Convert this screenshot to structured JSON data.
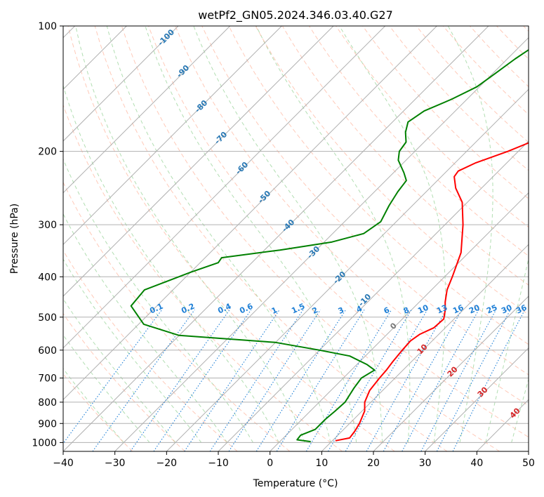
{
  "chart_data": {
    "type": "line",
    "title": "wetPf2_GN05.2024.346.03.40.G27",
    "xlabel": "Temperature (°C)",
    "ylabel": "Pressure (hPa)",
    "xlim": [
      -40,
      50
    ],
    "ylim": [
      1050,
      100
    ],
    "y_scale": "log",
    "x_ticks": [
      "−40",
      "−30",
      "−20",
      "−10",
      "0",
      "10",
      "20",
      "30",
      "40",
      "50"
    ],
    "y_ticks": [
      "100",
      "200",
      "300",
      "400",
      "500",
      "600",
      "700",
      "800",
      "900",
      "1000"
    ],
    "grid": true,
    "skew": "skew-T log-p",
    "series": [
      {
        "kind": "temperature",
        "color": "#ff0000",
        "points": [
          [
            10.6,
            990
          ],
          [
            12.8,
            975
          ],
          [
            12.5,
            940
          ],
          [
            11.9,
            900
          ],
          [
            10.5,
            840
          ],
          [
            8.8,
            800
          ],
          [
            7.5,
            750
          ],
          [
            7.0,
            700
          ],
          [
            6.8,
            670
          ],
          [
            6.4,
            640
          ],
          [
            6.0,
            600
          ],
          [
            5.8,
            570
          ],
          [
            6.3,
            550
          ],
          [
            7.8,
            530
          ],
          [
            8.0,
            505
          ],
          [
            6.5,
            480
          ],
          [
            5.0,
            460
          ],
          [
            3.0,
            430
          ],
          [
            1.5,
            400
          ],
          [
            -1.5,
            350
          ],
          [
            -6.5,
            300
          ],
          [
            -11.0,
            265
          ],
          [
            -15.0,
            245
          ],
          [
            -17.5,
            230
          ],
          [
            -17.8,
            223
          ],
          [
            -16.0,
            213
          ],
          [
            -12.0,
            200
          ],
          [
            -7.5,
            183
          ],
          [
            -3.5,
            163
          ],
          [
            -1.0,
            150
          ],
          [
            0.0,
            135
          ],
          [
            1.0,
            120
          ],
          [
            2.5,
            110
          ],
          [
            3.5,
            100
          ]
        ]
      },
      {
        "kind": "dewpoint",
        "color": "#008000",
        "points": [
          [
            6.0,
            995
          ],
          [
            3.0,
            985
          ],
          [
            2.8,
            960
          ],
          [
            4.5,
            930
          ],
          [
            4.5,
            880
          ],
          [
            4.8,
            840
          ],
          [
            5.0,
            800
          ],
          [
            4.0,
            740
          ],
          [
            3.5,
            700
          ],
          [
            4.5,
            670
          ],
          [
            2.0,
            650
          ],
          [
            -3.0,
            620
          ],
          [
            -10.0,
            600
          ],
          [
            -20.0,
            575
          ],
          [
            -40.0,
            553
          ],
          [
            -49.0,
            520
          ],
          [
            -55.0,
            470
          ],
          [
            -55.5,
            430
          ],
          [
            -50.0,
            390
          ],
          [
            -46.5,
            370
          ],
          [
            -46.8,
            360
          ],
          [
            -37.0,
            345
          ],
          [
            -28.5,
            330
          ],
          [
            -24.0,
            315
          ],
          [
            -23.0,
            295
          ],
          [
            -24.5,
            270
          ],
          [
            -25.5,
            250
          ],
          [
            -26.0,
            235
          ],
          [
            -28.0,
            225
          ],
          [
            -31.5,
            210
          ],
          [
            -33.0,
            200
          ],
          [
            -33.5,
            190
          ],
          [
            -35.5,
            180
          ],
          [
            -37.0,
            170
          ],
          [
            -36.0,
            160
          ],
          [
            -33.0,
            150
          ],
          [
            -30.5,
            140
          ],
          [
            -29.5,
            130
          ],
          [
            -28.5,
            120
          ],
          [
            -27.0,
            110
          ],
          [
            -25.0,
            100
          ]
        ]
      }
    ],
    "dry_adiabat_labels": [
      "-100",
      "-90",
      "-80",
      "-70",
      "-60",
      "-50",
      "-40",
      "-30",
      "-20",
      "-10",
      "0",
      "10",
      "20",
      "30",
      "40"
    ],
    "mixing_ratio_labels": [
      "0.1",
      "0.2",
      "0.4",
      "0.6",
      "1",
      "1.5",
      "2",
      "3",
      "4",
      "6",
      "8",
      "10",
      "13",
      "16",
      "20",
      "25",
      "30",
      "36"
    ],
    "colors": {
      "isotherm": "#b0b0b0",
      "dry_adiabat": "#ff9f80",
      "moist_adiabat": "#7ec87e",
      "mixing_ratio": "#1e7fd6",
      "label_cold": "#2878b4",
      "label_zero": "#7a7a7a",
      "label_warm": "#d62728",
      "lcl_curve": "#c8a07a"
    }
  }
}
